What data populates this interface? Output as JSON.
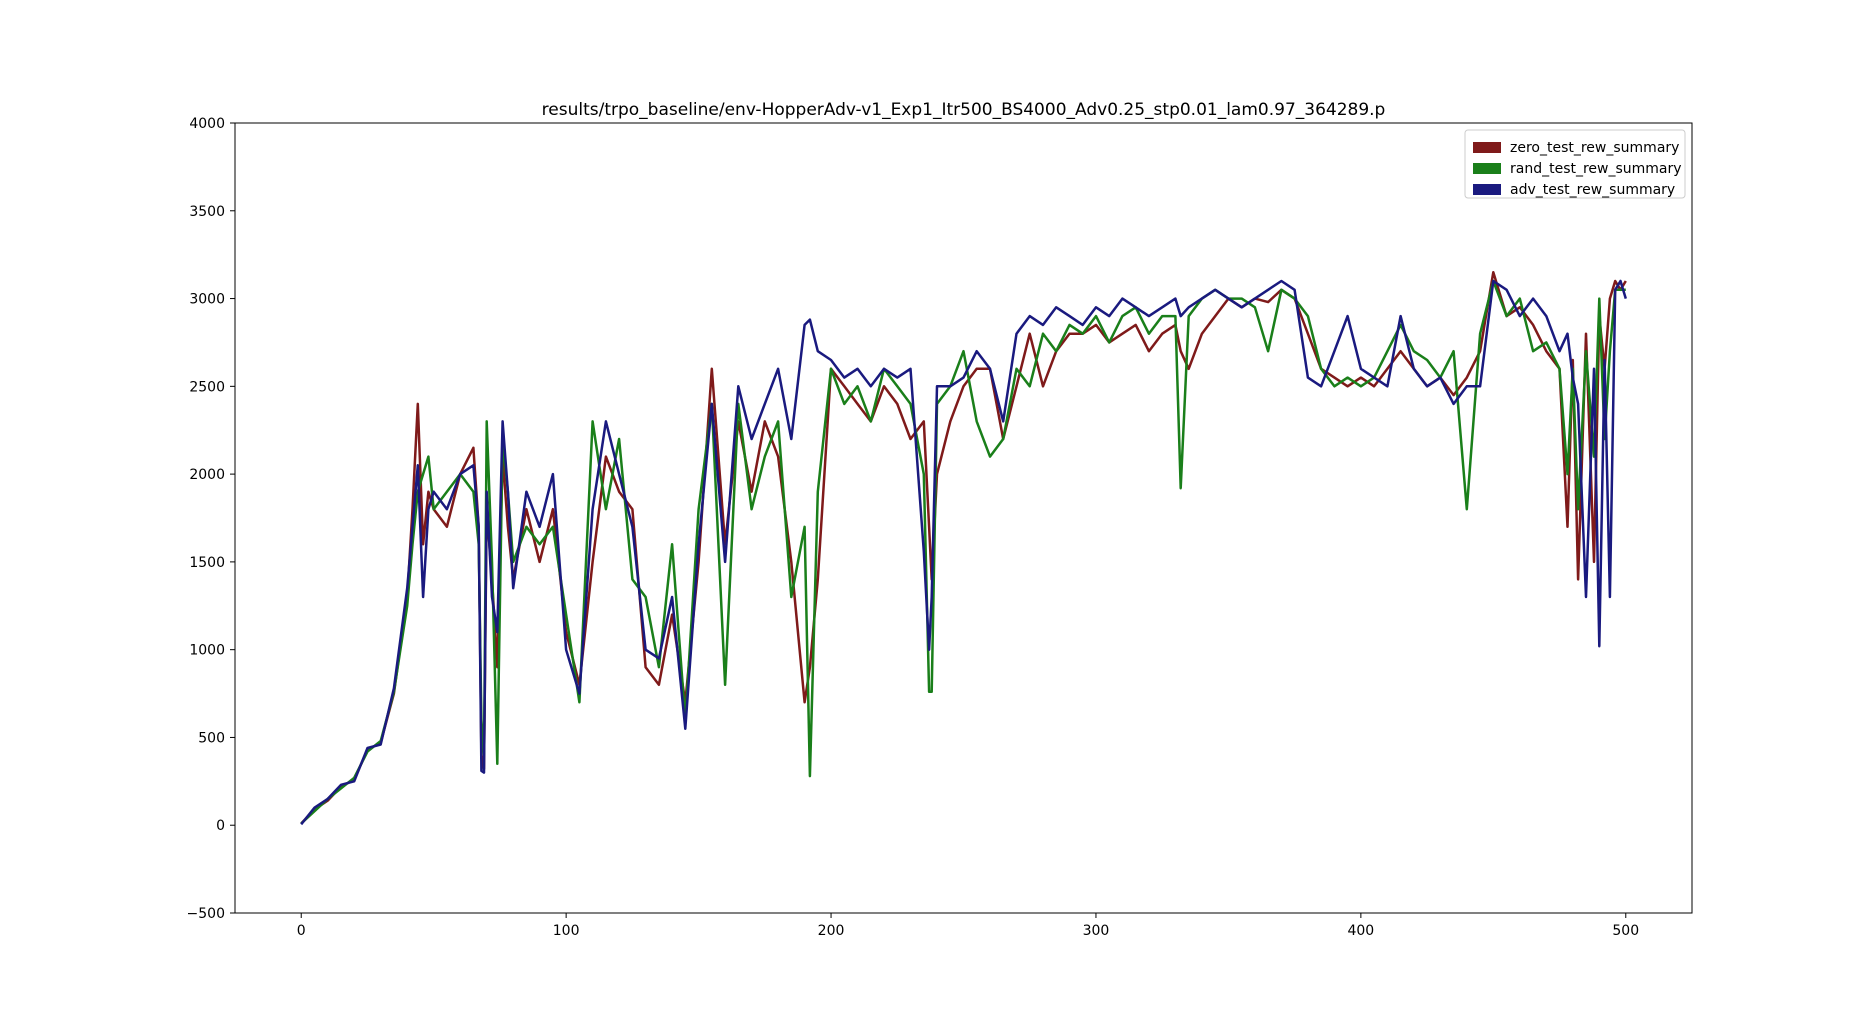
{
  "chart_data": {
    "type": "line",
    "title": "results/trpo_baseline/env-HopperAdv-v1_Exp1_Itr500_BS4000_Adv0.25_stp0.01_lam0.97_364289.p",
    "xlabel": "",
    "ylabel": "",
    "xlim": [
      -25,
      525
    ],
    "ylim": [
      -500,
      4000
    ],
    "xticks": [
      0,
      100,
      200,
      300,
      400,
      500
    ],
    "yticks": [
      -500,
      0,
      500,
      1000,
      1500,
      2000,
      2500,
      3000,
      3500,
      4000
    ],
    "grid": false,
    "legend_position": "top-right",
    "x": [
      0,
      5,
      10,
      15,
      20,
      25,
      30,
      35,
      40,
      42,
      44,
      46,
      48,
      50,
      55,
      60,
      65,
      67,
      68,
      69,
      70,
      72,
      74,
      76,
      78,
      80,
      85,
      90,
      95,
      100,
      105,
      110,
      115,
      120,
      125,
      130,
      135,
      140,
      145,
      150,
      155,
      160,
      165,
      170,
      175,
      180,
      185,
      190,
      192,
      195,
      200,
      205,
      210,
      215,
      220,
      225,
      230,
      235,
      237,
      238,
      240,
      245,
      250,
      255,
      260,
      265,
      270,
      275,
      280,
      285,
      290,
      295,
      300,
      305,
      310,
      315,
      320,
      325,
      330,
      332,
      335,
      340,
      345,
      350,
      355,
      360,
      365,
      370,
      375,
      380,
      385,
      390,
      395,
      400,
      405,
      410,
      415,
      420,
      425,
      430,
      435,
      440,
      445,
      450,
      455,
      460,
      465,
      470,
      475,
      478,
      480,
      482,
      485,
      488,
      490,
      492,
      494,
      496,
      498,
      500
    ],
    "series": [
      {
        "name": "zero_test_rew_summary",
        "color": "#7f1a1a",
        "values": [
          10,
          90,
          140,
          220,
          260,
          430,
          470,
          750,
          1300,
          1800,
          2400,
          1600,
          1900,
          1800,
          1700,
          2000,
          2150,
          1700,
          400,
          320,
          1800,
          1400,
          900,
          2100,
          1700,
          1400,
          1800,
          1500,
          1800,
          1100,
          800,
          1500,
          2100,
          1900,
          1800,
          900,
          800,
          1200,
          700,
          1500,
          2600,
          1600,
          2300,
          1900,
          2300,
          2100,
          1500,
          700,
          900,
          1400,
          2600,
          2500,
          2400,
          2300,
          2500,
          2400,
          2200,
          2300,
          1700,
          1400,
          2000,
          2300,
          2500,
          2600,
          2600,
          2200,
          2500,
          2800,
          2500,
          2700,
          2800,
          2800,
          2850,
          2750,
          2800,
          2850,
          2700,
          2800,
          2850,
          2700,
          2600,
          2800,
          2900,
          3000,
          2950,
          3000,
          2980,
          3050,
          3000,
          2800,
          2600,
          2550,
          2500,
          2550,
          2500,
          2600,
          2700,
          2600,
          2500,
          2550,
          2450,
          2550,
          2700,
          3150,
          2900,
          2950,
          2850,
          2700,
          2600,
          1700,
          2650,
          1400,
          2800,
          1500,
          2900,
          2600,
          3000,
          3100,
          3050,
          3100
        ]
      },
      {
        "name": "rand_test_rew_summary",
        "color": "#1a7f1a",
        "values": [
          10,
          80,
          150,
          210,
          270,
          420,
          480,
          760,
          1250,
          1600,
          1900,
          2000,
          2100,
          1800,
          1900,
          2000,
          1900,
          1600,
          600,
          400,
          2300,
          1500,
          350,
          2200,
          1900,
          1500,
          1700,
          1600,
          1700,
          1200,
          700,
          2300,
          1800,
          2200,
          1400,
          1300,
          900,
          1600,
          600,
          1800,
          2400,
          800,
          2400,
          1800,
          2100,
          2300,
          1300,
          1700,
          280,
          1900,
          2600,
          2400,
          2500,
          2300,
          2600,
          2500,
          2400,
          2000,
          760,
          760,
          2400,
          2500,
          2700,
          2300,
          2100,
          2200,
          2600,
          2500,
          2800,
          2700,
          2850,
          2800,
          2900,
          2750,
          2900,
          2950,
          2800,
          2900,
          2900,
          1920,
          2900,
          3000,
          3050,
          3000,
          3000,
          2950,
          2700,
          3050,
          3000,
          2900,
          2600,
          2500,
          2550,
          2500,
          2550,
          2700,
          2850,
          2700,
          2650,
          2550,
          2700,
          1800,
          2800,
          3100,
          2900,
          3000,
          2700,
          2750,
          2600,
          2000,
          2600,
          1800,
          2700,
          2100,
          3000,
          2200,
          2700,
          3050,
          3050,
          3050
        ]
      },
      {
        "name": "adv_test_rew_summary",
        "color": "#1a1a7f",
        "values": [
          5,
          100,
          150,
          230,
          250,
          440,
          460,
          780,
          1350,
          1700,
          2050,
          1300,
          1800,
          1900,
          1800,
          2000,
          2050,
          1700,
          310,
          300,
          1900,
          1300,
          1100,
          2300,
          1900,
          1350,
          1900,
          1700,
          2000,
          1000,
          750,
          1800,
          2300,
          2000,
          1700,
          1000,
          950,
          1300,
          550,
          1600,
          2400,
          1500,
          2500,
          2200,
          2400,
          2600,
          2200,
          2850,
          2880,
          2700,
          2650,
          2550,
          2600,
          2500,
          2600,
          2550,
          2600,
          1560,
          1000,
          1300,
          2500,
          2500,
          2550,
          2700,
          2600,
          2300,
          2800,
          2900,
          2850,
          2950,
          2900,
          2850,
          2950,
          2900,
          3000,
          2950,
          2900,
          2950,
          3000,
          2900,
          2950,
          3000,
          3050,
          3000,
          2950,
          3000,
          3050,
          3100,
          3050,
          2550,
          2500,
          2700,
          2900,
          2600,
          2550,
          2500,
          2900,
          2600,
          2500,
          2550,
          2400,
          2500,
          2500,
          3100,
          3050,
          2900,
          3000,
          2900,
          2700,
          2800,
          2550,
          2400,
          1300,
          2600,
          1020,
          2650,
          1300,
          3050,
          3100,
          3000
        ]
      }
    ]
  }
}
